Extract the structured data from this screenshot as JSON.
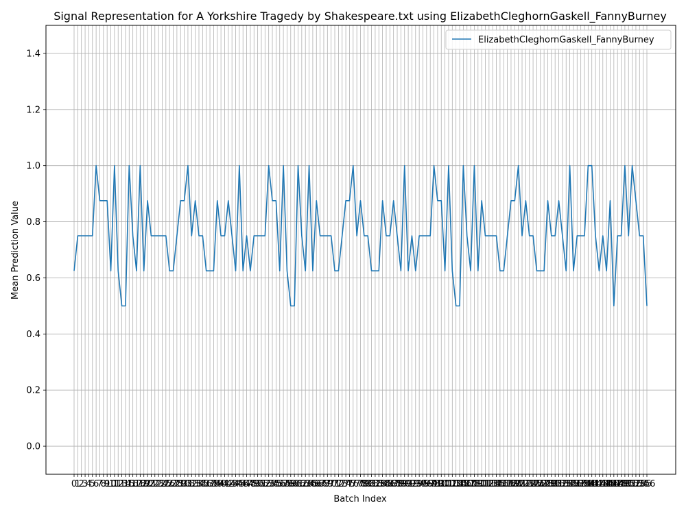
{
  "chart_data": {
    "type": "line",
    "title": "Signal Representation for A Yorkshire Tragedy by Shakespeare.txt using ElizabethCleghornGaskell_FannyBurney",
    "xlabel": "Batch Index",
    "ylabel": "Mean Prediction Value",
    "ylim": [
      -0.1,
      1.5
    ],
    "yticks": [
      0.0,
      0.2,
      0.4,
      0.6,
      0.8,
      1.0,
      1.2,
      1.4
    ],
    "grid": true,
    "legend_position": "top-right",
    "series": [
      {
        "name": "ElizabethCleghornGaskell_FannyBurney",
        "color": "#1f77b4",
        "values": [
          0.625,
          0.75,
          0.75,
          0.75,
          0.75,
          0.75,
          1.0,
          0.875,
          0.875,
          0.875,
          0.625,
          1.0,
          0.625,
          0.5,
          0.5,
          1.0,
          0.75,
          0.625,
          1.0,
          0.625,
          0.875,
          0.75,
          0.75,
          0.75,
          0.75,
          0.75,
          0.625,
          0.625,
          0.75,
          0.875,
          0.875,
          1.0,
          0.75,
          0.875,
          0.75,
          0.75,
          0.625,
          0.625,
          0.625,
          0.875,
          0.75,
          0.75,
          0.875,
          0.75,
          0.625,
          1.0,
          0.625,
          0.75,
          0.625,
          0.75,
          0.75,
          0.75,
          0.75,
          1.0,
          0.875,
          0.875,
          0.625,
          1.0,
          0.625,
          0.5,
          0.5,
          1.0,
          0.75,
          0.625,
          1.0,
          0.625,
          0.875,
          0.75,
          0.75,
          0.75,
          0.75,
          0.625,
          0.625,
          0.75,
          0.875,
          0.875,
          1.0,
          0.75,
          0.875,
          0.75,
          0.75,
          0.625,
          0.625,
          0.625,
          0.875,
          0.75,
          0.75,
          0.875,
          0.75,
          0.625,
          1.0,
          0.625,
          0.75,
          0.625,
          0.75,
          0.75,
          0.75,
          0.75,
          1.0,
          0.875,
          0.875,
          0.625,
          1.0,
          0.625,
          0.5,
          0.5,
          1.0,
          0.75,
          0.625,
          1.0,
          0.625,
          0.875,
          0.75,
          0.75,
          0.75,
          0.75,
          0.625,
          0.625,
          0.75,
          0.875,
          0.875,
          1.0,
          0.75,
          0.875,
          0.75,
          0.75,
          0.625,
          0.625,
          0.625,
          0.875,
          0.75,
          0.75,
          0.875,
          0.75,
          0.625,
          1.0,
          0.625,
          0.75,
          0.75,
          0.75,
          1.0,
          1.0,
          0.75,
          0.625,
          0.75,
          0.625,
          0.875,
          0.5,
          0.75,
          0.75,
          1.0,
          0.75,
          1.0,
          0.875,
          0.75,
          0.75,
          0.5
        ]
      }
    ]
  }
}
